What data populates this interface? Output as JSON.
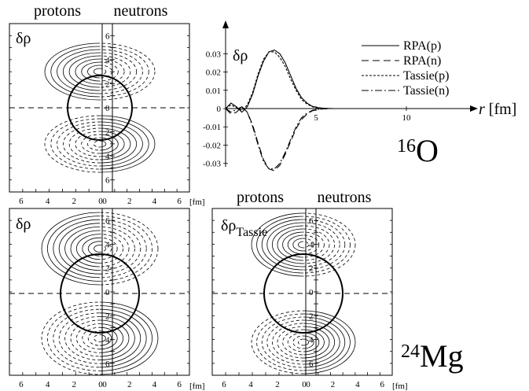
{
  "panels": {
    "o16_left": {
      "headers": [
        "protons",
        "neutrons"
      ],
      "label": "δρ",
      "x_ticks_left": [
        "6",
        "4",
        "2",
        "0"
      ],
      "x_ticks_right": [
        "0",
        "2",
        "4",
        "6"
      ],
      "y_ticks": [
        "6",
        "4",
        "2",
        "0",
        "2",
        "4",
        "6"
      ],
      "unit": "[fm]"
    },
    "mg24_left": {
      "label": "δρ",
      "x_ticks_left": [
        "6",
        "4",
        "2",
        "0"
      ],
      "x_ticks_right": [
        "0",
        "2",
        "4",
        "6"
      ],
      "y_ticks": [
        "6",
        "4",
        "2",
        "0",
        "2",
        "4",
        "6"
      ],
      "unit": "[fm]"
    },
    "mg24_right": {
      "headers": [
        "protons",
        "neutrons"
      ],
      "label_main": "δρ",
      "label_sub": "Tassie",
      "x_ticks_left": [
        "6",
        "4",
        "2",
        "0"
      ],
      "x_ticks_right": [
        "0",
        "2",
        "4",
        "6"
      ],
      "y_ticks": [
        "6",
        "4",
        "2",
        "0",
        "2",
        "4",
        "6"
      ],
      "unit": "[fm]"
    }
  },
  "nuclei": {
    "o16": {
      "mass": "16",
      "symbol": "O"
    },
    "mg24": {
      "mass": "24",
      "symbol": "Mg"
    }
  },
  "chart_data": {
    "type": "line",
    "ylabel": "δρ",
    "xlabel_symbol": "r",
    "xlabel_unit": "[fm]",
    "xlim": [
      0,
      13
    ],
    "ylim": [
      -0.037,
      0.037
    ],
    "x_ticks": [
      "5",
      "10"
    ],
    "y_ticks": [
      "0.03",
      "0.02",
      "0.01",
      "0",
      "-0.01",
      "-0.02",
      "-0.03"
    ],
    "x": [
      0,
      0.3,
      0.6,
      0.9,
      1.2,
      1.5,
      1.8,
      2.1,
      2.4,
      2.7,
      3.0,
      3.3,
      3.6,
      3.9,
      4.2,
      4.5,
      4.8,
      5.1,
      5.4,
      5.7,
      6.0,
      6.5,
      7.0,
      8.0,
      9.0,
      10.0,
      11.0,
      12.0,
      13.0
    ],
    "series": [
      {
        "name": "RPA(p)",
        "style": "solid",
        "values": [
          0,
          0.003,
          0.001,
          -0.002,
          0.001,
          0.008,
          0.018,
          0.026,
          0.031,
          0.032,
          0.03,
          0.025,
          0.018,
          0.011,
          0.006,
          0.003,
          0.0012,
          0.0005,
          0.0002,
          0.0001,
          0,
          0,
          0,
          0,
          0,
          0,
          0,
          0,
          0
        ]
      },
      {
        "name": "RPA(n)",
        "style": "dashed",
        "values": [
          0,
          -0.003,
          -0.002,
          0.001,
          -0.002,
          -0.009,
          -0.019,
          -0.028,
          -0.033,
          -0.034,
          -0.031,
          -0.025,
          -0.018,
          -0.011,
          -0.006,
          -0.003,
          -0.0012,
          -0.0005,
          -0.0002,
          -0.0001,
          0,
          0,
          0,
          0,
          0,
          0,
          0,
          0,
          0
        ]
      },
      {
        "name": "Tassie(p)",
        "style": "dotted",
        "values": [
          0,
          0.002,
          0.0005,
          -0.001,
          0.002,
          0.009,
          0.019,
          0.027,
          0.031,
          0.031,
          0.028,
          0.023,
          0.016,
          0.01,
          0.005,
          0.0025,
          0.001,
          0.0004,
          0.0001,
          0,
          0,
          0,
          0,
          0,
          0,
          0,
          0,
          0,
          0
        ]
      },
      {
        "name": "Tassie(n)",
        "style": "dashdot",
        "values": [
          0,
          -0.002,
          -0.0005,
          0.001,
          -0.002,
          -0.01,
          -0.02,
          -0.029,
          -0.033,
          -0.033,
          -0.03,
          -0.024,
          -0.017,
          -0.01,
          -0.005,
          -0.0025,
          -0.001,
          -0.0004,
          -0.0001,
          0,
          0,
          0,
          0,
          0,
          0,
          0,
          0,
          0,
          0
        ]
      }
    ]
  }
}
